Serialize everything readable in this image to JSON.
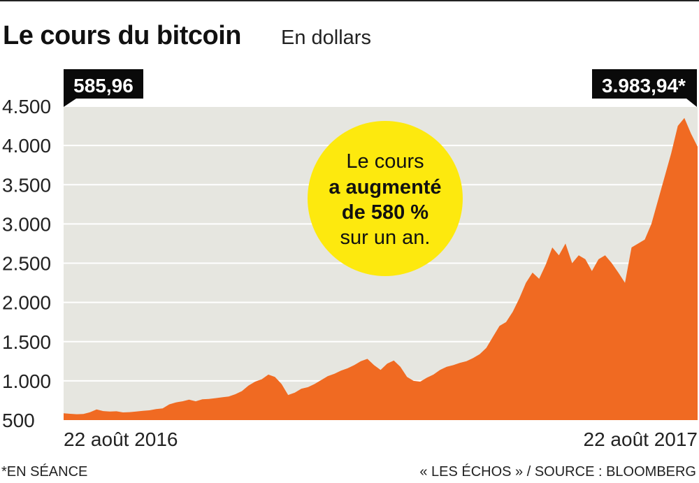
{
  "title": "Le cours du bitcoin",
  "subtitle": "En dollars",
  "footer": {
    "note": "*EN SÉANCE",
    "source": "« LES ÉCHOS » / SOURCE : BLOOMBERG"
  },
  "colors": {
    "area": "#f06a22",
    "background": "#e6e6e0",
    "bubble": "#fde90e",
    "callout_bg": "#0a0a0a",
    "callout_text": "#ffffff"
  },
  "chart_data": {
    "type": "area",
    "title": "Le cours du bitcoin",
    "subtitle": "En dollars",
    "ylim": [
      500,
      4500
    ],
    "y_ticks": [
      500,
      1000,
      1500,
      2000,
      2500,
      3000,
      3500,
      4000,
      4500
    ],
    "y_tick_labels": [
      "500",
      "1.000",
      "1.500",
      "2.000",
      "2.500",
      "3.000",
      "3.500",
      "4.000",
      "4.500"
    ],
    "x_tick_labels": [
      "22 août 2016",
      "22 août 2017"
    ],
    "grid": true,
    "series": [
      {
        "values": [
          586,
          580,
          575,
          578,
          600,
          635,
          615,
          610,
          612,
          598,
          602,
          610,
          618,
          625,
          640,
          650,
          700,
          725,
          740,
          760,
          740,
          765,
          770,
          780,
          790,
          800,
          830,
          870,
          940,
          990,
          1020,
          1080,
          1050,
          960,
          820,
          850,
          900,
          920,
          960,
          1010,
          1060,
          1090,
          1130,
          1160,
          1200,
          1250,
          1280,
          1200,
          1140,
          1220,
          1260,
          1180,
          1050,
          1000,
          990,
          1040,
          1080,
          1140,
          1180,
          1200,
          1230,
          1250,
          1290,
          1340,
          1420,
          1560,
          1700,
          1750,
          1880,
          2050,
          2250,
          2380,
          2300,
          2480,
          2700,
          2600,
          2750,
          2500,
          2600,
          2550,
          2400,
          2550,
          2600,
          2500,
          2380,
          2250,
          2700,
          2750,
          2800,
          3000,
          3300,
          3600,
          3900,
          4250,
          4350,
          4150,
          3984
        ]
      }
    ],
    "annotations": {
      "start_value": "585,96",
      "end_value": "3.983,94*",
      "bubble": {
        "line1": "Le cours",
        "line2": "a augmenté",
        "line3": "de 580 %",
        "line4": "sur un an."
      }
    }
  }
}
